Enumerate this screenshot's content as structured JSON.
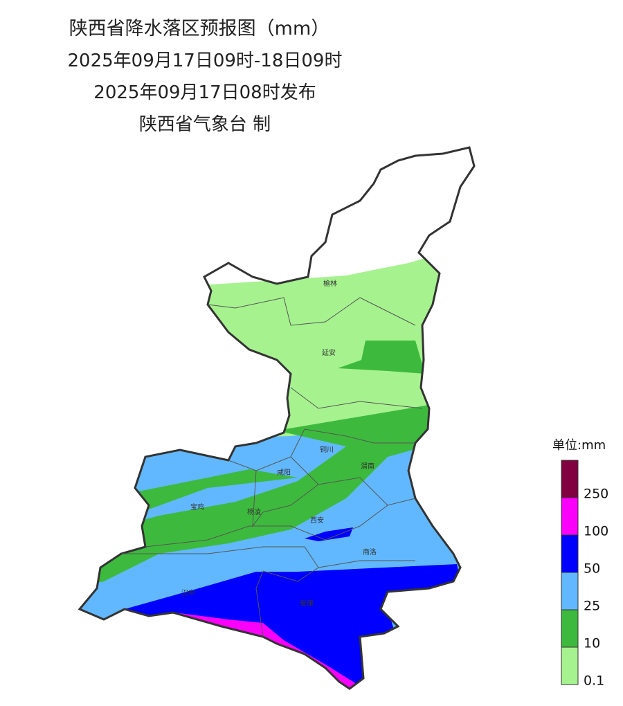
{
  "header": {
    "title": "陕西省降水落区预报图（mm）",
    "period": "2025年09月17日09时-18日09时",
    "issued": "2025年09月17日08时发布",
    "producer": "陕西省气象台 制"
  },
  "map": {
    "cities": [
      "榆林",
      "延安",
      "铜川",
      "咸阳",
      "渭南",
      "宝鸡",
      "杨凌",
      "西安",
      "商洛",
      "汉中",
      "安康"
    ]
  },
  "legend": {
    "title": "单位:mm",
    "levels": [
      {
        "label": "0.1",
        "color": "#a6f28f"
      },
      {
        "label": "10",
        "color": "#3dba3d"
      },
      {
        "label": "25",
        "color": "#61b8ff"
      },
      {
        "label": "50",
        "color": "#0000fe"
      },
      {
        "label": "100",
        "color": "#fa00fa"
      },
      {
        "label": "250",
        "color": "#810040"
      }
    ]
  }
}
